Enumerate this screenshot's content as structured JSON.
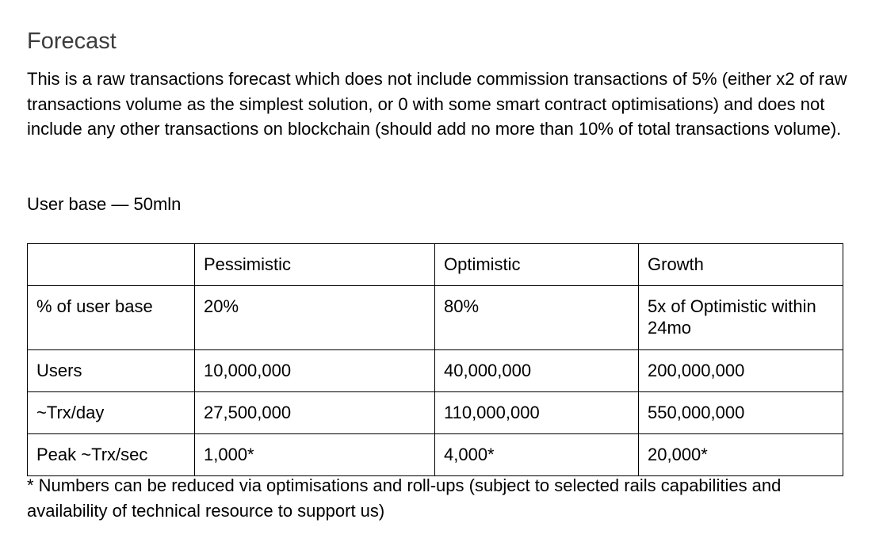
{
  "document": {
    "title": "Forecast",
    "intro": "This is a raw transactions forecast which does not include commission transactions of 5% (either x2 of raw transactions volume as the simplest solution, or 0 with some smart contract optimisations) and does not include any other transactions on blockchain (should add no more than 10% of total transactions volume).",
    "user_base": "User base — 50mln",
    "footnote": "* Numbers can be reduced via optimisations and roll-ups (subject to selected rails capabilities and availability of technical resource to support us)"
  },
  "table": {
    "header": [
      "",
      "Pessimistic",
      "Optimistic",
      "Growth"
    ],
    "rows": [
      [
        "% of user base",
        "20%",
        "80%",
        "5x of Optimistic within 24mo"
      ],
      [
        "Users",
        "10,000,000",
        "40,000,000",
        "200,000,000"
      ],
      [
        "~Trx/day",
        "27,500,000",
        "110,000,000",
        "550,000,000"
      ],
      [
        "Peak ~Trx/sec",
        "1,000*",
        "4,000*",
        "20,000*"
      ]
    ]
  }
}
